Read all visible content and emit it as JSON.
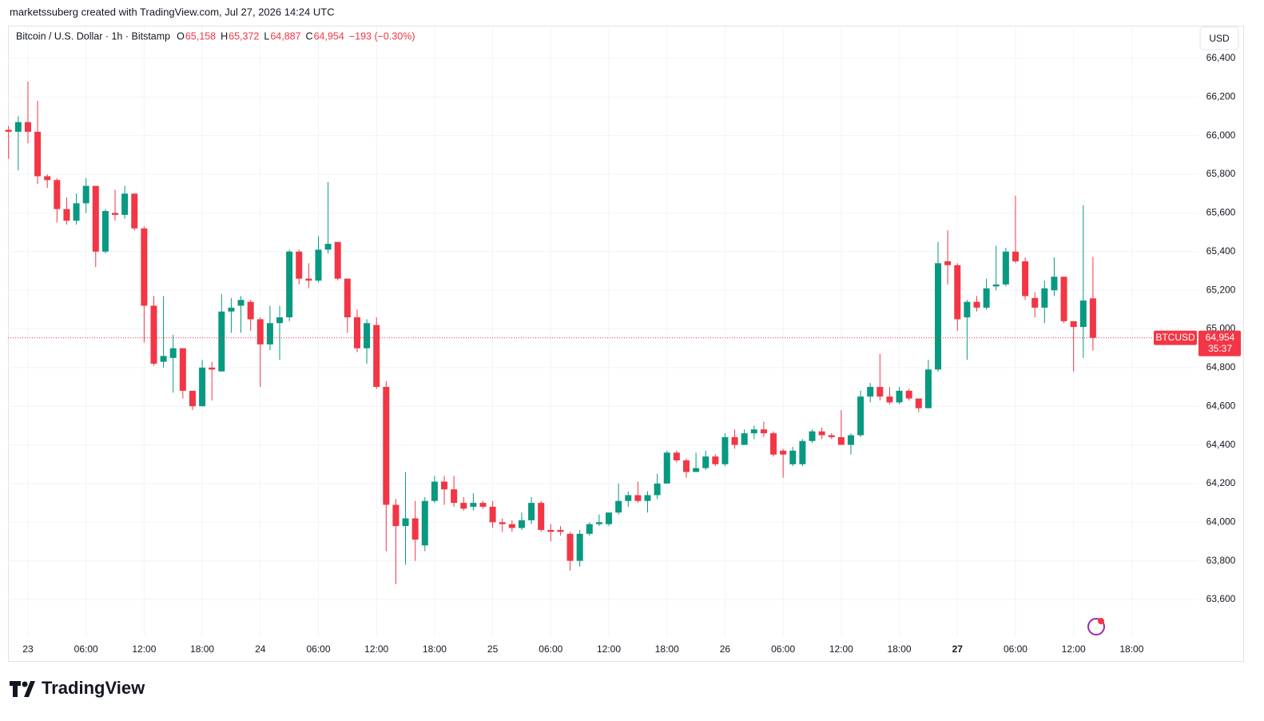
{
  "chart_data": {
    "type": "candlestick",
    "credit": "marketssuberg created with TradingView.com, Jul 27, 2026 14:24 UTC",
    "symbol": "Bitcoin / U.S. Dollar · 1h · Bitstamp",
    "quote": [
      {
        "key": "O",
        "value": 65158,
        "label": "65,158"
      },
      {
        "key": "H",
        "value": 65372,
        "label": "65,372"
      },
      {
        "key": "L",
        "value": 64887,
        "label": "64,887"
      },
      {
        "key": "C",
        "value": 64954,
        "label": "64,954"
      }
    ],
    "change": {
      "value": -193,
      "label": "−193 (−0.30%)"
    },
    "currency": "USD",
    "last_price": {
      "name": "BTCUSD",
      "value": 64954,
      "label": "64,954",
      "countdown": "35:37"
    },
    "brand": "TradingView",
    "up_color": "#089981",
    "down_color": "#f23645",
    "grid": true,
    "xlim": [
      -2.06,
      120.9
    ],
    "ylim": [
      63414,
      66557
    ],
    "xticks": [
      {
        "value": 0,
        "label": "23"
      },
      {
        "value": 6,
        "label": "06:00"
      },
      {
        "value": 12,
        "label": "12:00"
      },
      {
        "value": 18,
        "label": "18:00"
      },
      {
        "value": 24,
        "label": "24"
      },
      {
        "value": 30,
        "label": "06:00"
      },
      {
        "value": 36,
        "label": "12:00"
      },
      {
        "value": 42,
        "label": "18:00"
      },
      {
        "value": 48,
        "label": "25"
      },
      {
        "value": 54,
        "label": "06:00"
      },
      {
        "value": 60,
        "label": "12:00"
      },
      {
        "value": 66,
        "label": "18:00"
      },
      {
        "value": 72,
        "label": "26"
      },
      {
        "value": 78,
        "label": "06:00"
      },
      {
        "value": 84,
        "label": "12:00"
      },
      {
        "value": 90,
        "label": "18:00"
      },
      {
        "value": 96,
        "label": "27"
      },
      {
        "value": 102,
        "label": "06:00"
      },
      {
        "value": 108,
        "label": "12:00"
      },
      {
        "value": 114,
        "label": "18:00"
      }
    ],
    "yticks": [
      {
        "value": 63600,
        "label": "63,600"
      },
      {
        "value": 63800,
        "label": "63,800"
      },
      {
        "value": 64000,
        "label": "64,000"
      },
      {
        "value": 64200,
        "label": "64,200"
      },
      {
        "value": 64400,
        "label": "64,400"
      },
      {
        "value": 64600,
        "label": "64,600"
      },
      {
        "value": 64800,
        "label": "64,800"
      },
      {
        "value": 65000,
        "label": "65,000"
      },
      {
        "value": 65200,
        "label": "65,200"
      },
      {
        "value": 65400,
        "label": "65,400"
      },
      {
        "value": 65600,
        "label": "65,600"
      },
      {
        "value": 65800,
        "label": "65,800"
      },
      {
        "value": 66000,
        "label": "66,000"
      },
      {
        "value": 66200,
        "label": "66,200"
      },
      {
        "value": 66400,
        "label": "66,400"
      }
    ],
    "candles": [
      {
        "x": -2,
        "open": 66030,
        "high": 66050,
        "low": 65880,
        "close": 66020
      },
      {
        "x": -1,
        "open": 66020,
        "high": 66100,
        "low": 65820,
        "close": 66070
      },
      {
        "x": 0,
        "open": 66070,
        "high": 66280,
        "low": 65960,
        "close": 66020
      },
      {
        "x": 1,
        "open": 66020,
        "high": 66180,
        "low": 65750,
        "close": 65790
      },
      {
        "x": 2,
        "open": 65790,
        "high": 65800,
        "low": 65730,
        "close": 65770
      },
      {
        "x": 3,
        "open": 65770,
        "high": 65780,
        "low": 65550,
        "close": 65620
      },
      {
        "x": 4,
        "open": 65620,
        "high": 65680,
        "low": 65540,
        "close": 65560
      },
      {
        "x": 5,
        "open": 65560,
        "high": 65700,
        "low": 65540,
        "close": 65650
      },
      {
        "x": 6,
        "open": 65650,
        "high": 65780,
        "low": 65600,
        "close": 65740
      },
      {
        "x": 7,
        "open": 65740,
        "high": 65740,
        "low": 65320,
        "close": 65400
      },
      {
        "x": 8,
        "open": 65400,
        "high": 65620,
        "low": 65390,
        "close": 65610
      },
      {
        "x": 9,
        "open": 65600,
        "high": 65720,
        "low": 65560,
        "close": 65590
      },
      {
        "x": 10,
        "open": 65590,
        "high": 65740,
        "low": 65570,
        "close": 65700
      },
      {
        "x": 11,
        "open": 65700,
        "high": 65700,
        "low": 65510,
        "close": 65520
      },
      {
        "x": 12,
        "open": 65520,
        "high": 65530,
        "low": 64930,
        "close": 65120
      },
      {
        "x": 13,
        "open": 65120,
        "high": 65170,
        "low": 64810,
        "close": 64820
      },
      {
        "x": 14,
        "open": 64830,
        "high": 65170,
        "low": 64800,
        "close": 64860
      },
      {
        "x": 15,
        "open": 64850,
        "high": 64970,
        "low": 64670,
        "close": 64900
      },
      {
        "x": 16,
        "open": 64900,
        "high": 64900,
        "low": 64640,
        "close": 64680
      },
      {
        "x": 17,
        "open": 64680,
        "high": 64680,
        "low": 64580,
        "close": 64600
      },
      {
        "x": 18,
        "open": 64600,
        "high": 64840,
        "low": 64600,
        "close": 64800
      },
      {
        "x": 19,
        "open": 64800,
        "high": 64830,
        "low": 64630,
        "close": 64790
      },
      {
        "x": 20,
        "open": 64780,
        "high": 65180,
        "low": 64780,
        "close": 65090
      },
      {
        "x": 21,
        "open": 65090,
        "high": 65160,
        "low": 64980,
        "close": 65110
      },
      {
        "x": 22,
        "open": 65120,
        "high": 65170,
        "low": 64980,
        "close": 65150
      },
      {
        "x": 23,
        "open": 65140,
        "high": 65150,
        "low": 64990,
        "close": 65050
      },
      {
        "x": 24,
        "open": 65050,
        "high": 65060,
        "low": 64700,
        "close": 64920
      },
      {
        "x": 25,
        "open": 64920,
        "high": 65120,
        "low": 64890,
        "close": 65030
      },
      {
        "x": 26,
        "open": 65030,
        "high": 65120,
        "low": 64840,
        "close": 65060
      },
      {
        "x": 27,
        "open": 65060,
        "high": 65410,
        "low": 65040,
        "close": 65400
      },
      {
        "x": 28,
        "open": 65400,
        "high": 65410,
        "low": 65230,
        "close": 65260
      },
      {
        "x": 29,
        "open": 65260,
        "high": 65340,
        "low": 65210,
        "close": 65250
      },
      {
        "x": 30,
        "open": 65250,
        "high": 65480,
        "low": 65240,
        "close": 65410
      },
      {
        "x": 31,
        "open": 65410,
        "high": 65760,
        "low": 65390,
        "close": 65440
      },
      {
        "x": 32,
        "open": 65450,
        "high": 65450,
        "low": 65250,
        "close": 65260
      },
      {
        "x": 33,
        "open": 65260,
        "high": 65260,
        "low": 64980,
        "close": 65060
      },
      {
        "x": 34,
        "open": 65060,
        "high": 65100,
        "low": 64880,
        "close": 64900
      },
      {
        "x": 35,
        "open": 64900,
        "high": 65050,
        "low": 64820,
        "close": 65030
      },
      {
        "x": 36,
        "open": 65020,
        "high": 65060,
        "low": 64690,
        "close": 64700
      },
      {
        "x": 37,
        "open": 64700,
        "high": 64730,
        "low": 63850,
        "close": 64090
      },
      {
        "x": 38,
        "open": 64090,
        "high": 64120,
        "low": 63680,
        "close": 63980
      },
      {
        "x": 39,
        "open": 63980,
        "high": 64260,
        "low": 63780,
        "close": 64020
      },
      {
        "x": 40,
        "open": 64020,
        "high": 64110,
        "low": 63800,
        "close": 63910
      },
      {
        "x": 41,
        "open": 63880,
        "high": 64130,
        "low": 63850,
        "close": 64110
      },
      {
        "x": 42,
        "open": 64110,
        "high": 64240,
        "low": 64100,
        "close": 64210
      },
      {
        "x": 43,
        "open": 64210,
        "high": 64240,
        "low": 64090,
        "close": 64170
      },
      {
        "x": 44,
        "open": 64170,
        "high": 64240,
        "low": 64080,
        "close": 64100
      },
      {
        "x": 45,
        "open": 64100,
        "high": 64130,
        "low": 64060,
        "close": 64070
      },
      {
        "x": 46,
        "open": 64080,
        "high": 64150,
        "low": 64060,
        "close": 64100
      },
      {
        "x": 47,
        "open": 64100,
        "high": 64110,
        "low": 64070,
        "close": 64080
      },
      {
        "x": 48,
        "open": 64080,
        "high": 64110,
        "low": 63970,
        "close": 64000
      },
      {
        "x": 49,
        "open": 64000,
        "high": 64020,
        "low": 63950,
        "close": 63990
      },
      {
        "x": 50,
        "open": 63990,
        "high": 64010,
        "low": 63950,
        "close": 63970
      },
      {
        "x": 51,
        "open": 63970,
        "high": 64050,
        "low": 63960,
        "close": 64010
      },
      {
        "x": 52,
        "open": 64010,
        "high": 64130,
        "low": 63990,
        "close": 64100
      },
      {
        "x": 53,
        "open": 64100,
        "high": 64110,
        "low": 63950,
        "close": 63960
      },
      {
        "x": 54,
        "open": 63960,
        "high": 63990,
        "low": 63900,
        "close": 63950
      },
      {
        "x": 55,
        "open": 63960,
        "high": 63980,
        "low": 63930,
        "close": 63950
      },
      {
        "x": 56,
        "open": 63940,
        "high": 63950,
        "low": 63750,
        "close": 63800
      },
      {
        "x": 57,
        "open": 63800,
        "high": 63960,
        "low": 63770,
        "close": 63940
      },
      {
        "x": 58,
        "open": 63940,
        "high": 64000,
        "low": 63930,
        "close": 63990
      },
      {
        "x": 59,
        "open": 63990,
        "high": 64040,
        "low": 63980,
        "close": 64000
      },
      {
        "x": 60,
        "open": 63990,
        "high": 64050,
        "low": 63980,
        "close": 64050
      },
      {
        "x": 61,
        "open": 64050,
        "high": 64200,
        "low": 64040,
        "close": 64110
      },
      {
        "x": 62,
        "open": 64110,
        "high": 64160,
        "low": 64080,
        "close": 64140
      },
      {
        "x": 63,
        "open": 64140,
        "high": 64210,
        "low": 64100,
        "close": 64110
      },
      {
        "x": 64,
        "open": 64110,
        "high": 64160,
        "low": 64050,
        "close": 64140
      },
      {
        "x": 65,
        "open": 64140,
        "high": 64250,
        "low": 64120,
        "close": 64200
      },
      {
        "x": 66,
        "open": 64200,
        "high": 64370,
        "low": 64200,
        "close": 64360
      },
      {
        "x": 67,
        "open": 64360,
        "high": 64370,
        "low": 64310,
        "close": 64320
      },
      {
        "x": 68,
        "open": 64320,
        "high": 64330,
        "low": 64230,
        "close": 64260
      },
      {
        "x": 69,
        "open": 64260,
        "high": 64360,
        "low": 64260,
        "close": 64280
      },
      {
        "x": 70,
        "open": 64280,
        "high": 64370,
        "low": 64270,
        "close": 64340
      },
      {
        "x": 71,
        "open": 64340,
        "high": 64350,
        "low": 64290,
        "close": 64300
      },
      {
        "x": 72,
        "open": 64300,
        "high": 64460,
        "low": 64290,
        "close": 64440
      },
      {
        "x": 73,
        "open": 64440,
        "high": 64480,
        "low": 64380,
        "close": 64400
      },
      {
        "x": 74,
        "open": 64400,
        "high": 64480,
        "low": 64400,
        "close": 64460
      },
      {
        "x": 75,
        "open": 64460,
        "high": 64500,
        "low": 64430,
        "close": 64480
      },
      {
        "x": 76,
        "open": 64480,
        "high": 64520,
        "low": 64440,
        "close": 64460
      },
      {
        "x": 77,
        "open": 64460,
        "high": 64470,
        "low": 64340,
        "close": 64350
      },
      {
        "x": 78,
        "open": 64370,
        "high": 64380,
        "low": 64230,
        "close": 64350
      },
      {
        "x": 79,
        "open": 64300,
        "high": 64390,
        "low": 64290,
        "close": 64370
      },
      {
        "x": 80,
        "open": 64300,
        "high": 64430,
        "low": 64290,
        "close": 64420
      },
      {
        "x": 81,
        "open": 64420,
        "high": 64480,
        "low": 64410,
        "close": 64470
      },
      {
        "x": 82,
        "open": 64470,
        "high": 64490,
        "low": 64430,
        "close": 64450
      },
      {
        "x": 83,
        "open": 64450,
        "high": 64460,
        "low": 64430,
        "close": 64440
      },
      {
        "x": 84,
        "open": 64440,
        "high": 64580,
        "low": 64400,
        "close": 64400
      },
      {
        "x": 85,
        "open": 64400,
        "high": 64460,
        "low": 64350,
        "close": 64450
      },
      {
        "x": 86,
        "open": 64450,
        "high": 64680,
        "low": 64440,
        "close": 64650
      },
      {
        "x": 87,
        "open": 64650,
        "high": 64720,
        "low": 64620,
        "close": 64700
      },
      {
        "x": 88,
        "open": 64700,
        "high": 64870,
        "low": 64630,
        "close": 64650
      },
      {
        "x": 89,
        "open": 64650,
        "high": 64700,
        "low": 64610,
        "close": 64620
      },
      {
        "x": 90,
        "open": 64620,
        "high": 64700,
        "low": 64610,
        "close": 64680
      },
      {
        "x": 91,
        "open": 64680,
        "high": 64690,
        "low": 64630,
        "close": 64640
      },
      {
        "x": 92,
        "open": 64640,
        "high": 64640,
        "low": 64570,
        "close": 64590
      },
      {
        "x": 93,
        "open": 64590,
        "high": 64840,
        "low": 64590,
        "close": 64790
      },
      {
        "x": 94,
        "open": 64790,
        "high": 65450,
        "low": 64780,
        "close": 65340
      },
      {
        "x": 95,
        "open": 65350,
        "high": 65510,
        "low": 65230,
        "close": 65330
      },
      {
        "x": 96,
        "open": 65330,
        "high": 65340,
        "low": 64990,
        "close": 65050
      },
      {
        "x": 97,
        "open": 65060,
        "high": 65150,
        "low": 64840,
        "close": 65140
      },
      {
        "x": 98,
        "open": 65140,
        "high": 65170,
        "low": 65090,
        "close": 65110
      },
      {
        "x": 99,
        "open": 65110,
        "high": 65260,
        "low": 65100,
        "close": 65210
      },
      {
        "x": 100,
        "open": 65220,
        "high": 65430,
        "low": 65200,
        "close": 65230
      },
      {
        "x": 101,
        "open": 65230,
        "high": 65420,
        "low": 65220,
        "close": 65400
      },
      {
        "x": 102,
        "open": 65400,
        "high": 65690,
        "low": 65340,
        "close": 65350
      },
      {
        "x": 103,
        "open": 65350,
        "high": 65370,
        "low": 65150,
        "close": 65170
      },
      {
        "x": 104,
        "open": 65160,
        "high": 65190,
        "low": 65060,
        "close": 65110
      },
      {
        "x": 105,
        "open": 65110,
        "high": 65250,
        "low": 65030,
        "close": 65210
      },
      {
        "x": 106,
        "open": 65200,
        "high": 65370,
        "low": 65170,
        "close": 65270
      },
      {
        "x": 107,
        "open": 65270,
        "high": 65270,
        "low": 65030,
        "close": 65040
      },
      {
        "x": 108,
        "open": 65040,
        "high": 65040,
        "low": 64780,
        "close": 65010
      },
      {
        "x": 109,
        "open": 65010,
        "high": 65640,
        "low": 64850,
        "close": 65147
      },
      {
        "x": 110,
        "open": 65158,
        "high": 65372,
        "low": 64887,
        "close": 64954
      }
    ]
  }
}
